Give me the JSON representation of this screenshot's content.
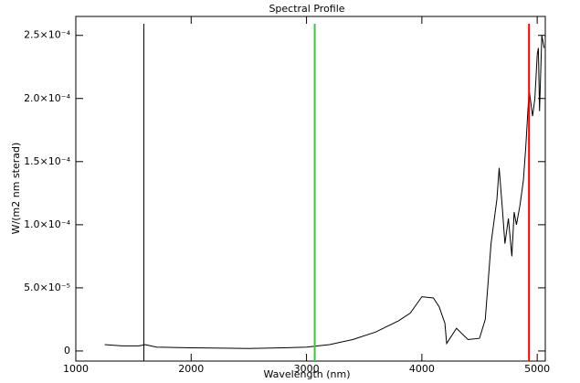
{
  "chart_data": {
    "type": "line",
    "title": "Spectral Profile",
    "x_label": "Wavelength (nm)",
    "y_label": "W/(m2 nm sterad)",
    "color": "#000000",
    "x": [
      1250,
      1400,
      1550,
      1600,
      1700,
      2000,
      2500,
      2800,
      3000,
      3200,
      3400,
      3600,
      3800,
      3900,
      4000,
      4100,
      4150,
      4200,
      4215,
      4300,
      4400,
      4500,
      4550,
      4600,
      4650,
      4670,
      4700,
      4720,
      4750,
      4780,
      4800,
      4820,
      4850,
      4880,
      4900,
      4930,
      4960,
      4980,
      5000,
      5010,
      5020,
      5040,
      5060
    ],
    "values": [
      5e-06,
      4e-06,
      4e-06,
      5e-06,
      3e-06,
      2.5e-06,
      2e-06,
      2.5e-06,
      3e-06,
      5e-06,
      9e-06,
      1.5e-05,
      2.4e-05,
      3e-05,
      4.3e-05,
      4.2e-05,
      3.5e-05,
      2.2e-05,
      6e-06,
      1.8e-05,
      9e-06,
      1e-05,
      2.5e-05,
      8.5e-05,
      0.00012,
      0.000145,
      0.00011,
      8.5e-05,
      0.000105,
      7.5e-05,
      0.00011,
      0.0001,
      0.000115,
      0.000135,
      0.00016,
      0.000207,
      0.000186,
      0.0002,
      0.000235,
      0.00024,
      0.00019,
      0.00025,
      0.00024
    ],
    "markers": [
      {
        "x": 1590,
        "color": "#000000"
      },
      {
        "x": 3071,
        "color": "#33cc33"
      },
      {
        "x": 4929,
        "color": "#ff0000"
      }
    ],
    "xlim": [
      1000,
      5070
    ],
    "ylim": [
      -8e-06,
      0.000265
    ],
    "xticks": [
      1000,
      2000,
      3000,
      4000,
      5000
    ],
    "yticks": [
      0,
      {
        "value": 5e-05,
        "label": "5.0×10⁻⁵"
      },
      {
        "value": 0.0001,
        "label": "1.0×10⁻⁴"
      },
      {
        "value": 0.00015,
        "label": "1.5×10⁻⁴"
      },
      {
        "value": 0.0002,
        "label": "2.0×10⁻⁴"
      },
      {
        "value": 0.00025,
        "label": "2.5×10⁻⁴"
      }
    ]
  }
}
